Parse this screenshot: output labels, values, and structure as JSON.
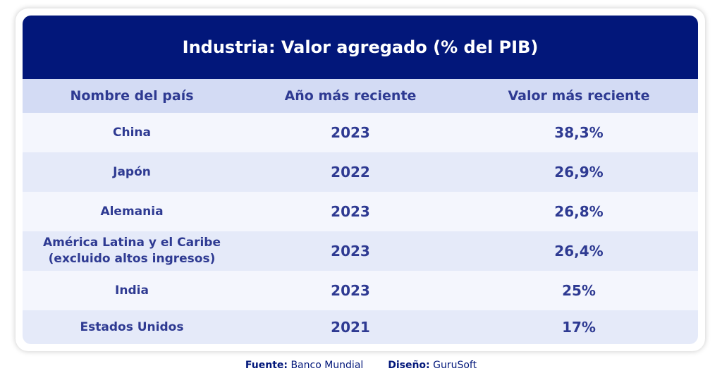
{
  "colors": {
    "title_bg": "#02177a",
    "title_text": "#ffffff",
    "header_bg": "#d3dbf4",
    "row_odd": "#f4f6fd",
    "row_even": "#e5eaf9",
    "text": "#2e3a92"
  },
  "chart_data": {
    "type": "table",
    "title": "Industria: Valor agregado (% del PIB)",
    "columns": [
      "Nombre del país",
      "Año más reciente",
      "Valor más reciente"
    ],
    "rows": [
      {
        "country": "China",
        "year": "2023",
        "value": "38,3%"
      },
      {
        "country": "Japón",
        "year": "2022",
        "value": "26,9%"
      },
      {
        "country": "Alemania",
        "year": "2023",
        "value": "26,8%"
      },
      {
        "country": "América Latina y el Caribe\n(excluido altos ingresos)",
        "year": "2023",
        "value": "26,4%"
      },
      {
        "country": "India",
        "year": "2023",
        "value": "25%"
      },
      {
        "country": "Estados Unidos",
        "year": "2021",
        "value": "17%"
      }
    ]
  },
  "footer": {
    "source_label": "Fuente:",
    "source_value": "Banco Mundial",
    "design_label": "Diseño:",
    "design_value": "GuruSoft"
  }
}
